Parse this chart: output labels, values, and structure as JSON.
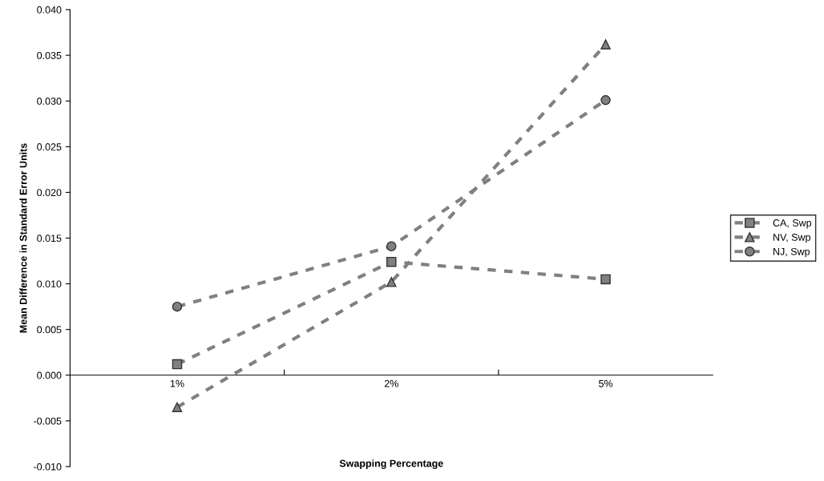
{
  "chart_data": {
    "type": "line",
    "xlabel": "Swapping Percentage",
    "ylabel": "Mean Difference in Standard Error Units",
    "categories": [
      "1%",
      "2%",
      "5%"
    ],
    "series": [
      {
        "name": "CA, Swp",
        "color": "#808080",
        "marker": "square",
        "values": [
          0.0012,
          0.0124,
          0.0105
        ]
      },
      {
        "name": "NV, Swp",
        "color": "#808080",
        "marker": "triangle",
        "values": [
          -0.0035,
          0.0102,
          0.0362
        ]
      },
      {
        "name": "NJ, Swp",
        "color": "#808080",
        "marker": "circle",
        "values": [
          0.0075,
          0.0141,
          0.0301
        ]
      }
    ],
    "ylim": [
      -0.01,
      0.04
    ],
    "yticks": [
      {
        "value": -0.01,
        "label": "-0.010"
      },
      {
        "value": -0.005,
        "label": "-0.005"
      },
      {
        "value": 0,
        "label": "0.000"
      },
      {
        "value": 0.005,
        "label": "0.005"
      },
      {
        "value": 0.01,
        "label": "0.010"
      },
      {
        "value": 0.015,
        "label": "0.015"
      },
      {
        "value": 0.02,
        "label": "0.020"
      },
      {
        "value": 0.025,
        "label": "0.025"
      },
      {
        "value": 0.03,
        "label": "0.030"
      },
      {
        "value": 0.035,
        "label": "0.035"
      },
      {
        "value": 0.04,
        "label": "0.040"
      }
    ],
    "line_style": "dashed",
    "grid": false,
    "legend": "right"
  }
}
